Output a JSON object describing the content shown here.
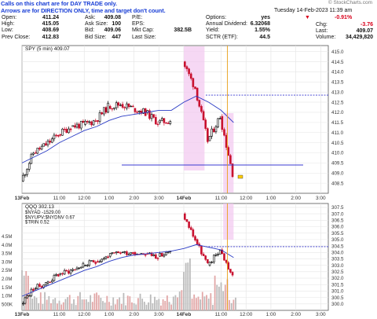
{
  "notes": {
    "line1": "Calls on this chart are for DAY TRADE only.",
    "line2": "Arrows are for DIRECTION ONLY, time and target don't count."
  },
  "brand": "© StockCharts.com",
  "header": {
    "datetime": "Tuesday 14-Feb-2023 11:39 am",
    "change_pct": "-0.91%",
    "arrow": "down-triangle-icon",
    "quote": [
      {
        "label": "Open:",
        "value": "411.24"
      },
      {
        "label": "High:",
        "value": "415.05"
      },
      {
        "label": "Low:",
        "value": "408.69"
      },
      {
        "label": "Prev Close:",
        "value": "412.83"
      },
      {
        "label": "Ask:",
        "value": "409.08"
      },
      {
        "label": "Ask Size:",
        "value": "100"
      },
      {
        "label": "Bid:",
        "value": "409.06"
      },
      {
        "label": "Bid Size:",
        "value": "447"
      },
      {
        "label": "P/E:",
        "value": ""
      },
      {
        "label": "EPS:",
        "value": ""
      },
      {
        "label": "Mkt Cap:",
        "value": "382.5B"
      },
      {
        "label": "Last Size:",
        "value": ""
      },
      {
        "label": "Options:",
        "value": "yes"
      },
      {
        "label": "Annual Dividend:",
        "value": "6.32068"
      },
      {
        "label": "Yield:",
        "value": "1.55%"
      },
      {
        "label": "SCTR (ETF):",
        "value": "44.5"
      },
      {
        "label": "Chg:",
        "value": "-3.76"
      },
      {
        "label": "Last:",
        "value": "409.07"
      },
      {
        "label": "Volume:",
        "value": "34,429,820"
      }
    ]
  },
  "colors": {
    "up": "#000000",
    "down": "#c8102e",
    "ma": "#2a3bc4",
    "highlight": "#f2c8f0",
    "hline": "#3a3ad0",
    "vline": "#e8a21a",
    "volume": "#bbbbbb"
  },
  "chart_data": [
    {
      "type": "line",
      "title": "SPY (5 min) 409.07",
      "subtype": "candlestick",
      "y_axis_side": "right",
      "ylim": [
        408.0,
        415.3
      ],
      "yticks": [
        "415.0",
        "414.5",
        "414.0",
        "413.5",
        "413.0",
        "412.5",
        "412.0",
        "411.5",
        "411.0",
        "410.5",
        "410.0",
        "409.5",
        "409.0",
        "408.5"
      ],
      "xticks": [
        "13Feb",
        "11:00",
        "12:00",
        "1:00",
        "2:00",
        "3:00",
        "14Feb",
        "11:00",
        "12:00",
        "1:00",
        "2:00",
        "3:00"
      ],
      "x": [
        "13Feb 9:30",
        "13Feb 10:00",
        "13Feb 10:30",
        "13Feb 11:00",
        "13Feb 11:30",
        "13Feb 12:00",
        "13Feb 12:30",
        "13Feb 1:00",
        "13Feb 1:30",
        "13Feb 2:00",
        "13Feb 2:30",
        "13Feb 3:00",
        "13Feb 3:30",
        "14Feb 9:30",
        "14Feb 10:00",
        "14Feb 10:30",
        "14Feb 11:00",
        "14Feb 11:30"
      ],
      "series": [
        {
          "values": [
            408.6,
            410.0,
            410.4,
            410.9,
            411.3,
            411.4,
            411.6,
            412.3,
            412.4,
            412.2,
            412.0,
            411.5,
            411.6,
            414.5,
            413.2,
            410.6,
            411.8,
            409.0
          ]
        },
        {
          "values": [
            409.5,
            409.8,
            410.1,
            410.5,
            410.8,
            411.1,
            411.3,
            411.6,
            411.8,
            411.9,
            412.0,
            412.1,
            412.1,
            412.5,
            412.8,
            412.5,
            412.1,
            411.5
          ]
        }
      ],
      "reference_lines": [
        412.85,
        409.4
      ],
      "highlight_x": [
        "14Feb 9:30",
        "14Feb 10:20",
        "14Feb 11:05",
        "14Feb 11:30"
      ],
      "vertical_line_x": "14Feb 11:15"
    },
    {
      "type": "line",
      "title": "QQQ 302.13",
      "subtype": "candlestick",
      "legend": [
        "$NYAD -1529.00",
        "$NYUPV:$NYDNV 0.67",
        "$TRIN 0.52"
      ],
      "ylim": [
        299.5,
        307.8
      ],
      "yticks": [
        "307.5",
        "307.0",
        "306.5",
        "306.0",
        "305.5",
        "305.0",
        "304.5",
        "304.0",
        "303.5",
        "303.0",
        "302.5",
        "302.0",
        "301.5",
        "301.0",
        "300.5",
        "300.0"
      ],
      "volume_ticks": [
        "4.5M",
        "4.0M",
        "3.5M",
        "3.0M",
        "2.5M",
        "2.0M",
        "1.5M",
        "1.0M",
        "500K"
      ],
      "xticks": [
        "13Feb",
        "11:00",
        "12:00",
        "1:00",
        "2:00",
        "3:00",
        "14Feb",
        "11:00",
        "12:00",
        "1:00",
        "2:00",
        "3:00"
      ],
      "x": [
        "13Feb 9:30",
        "13Feb 10:00",
        "13Feb 10:30",
        "13Feb 11:00",
        "13Feb 11:30",
        "13Feb 12:00",
        "13Feb 12:30",
        "13Feb 1:00",
        "13Feb 1:30",
        "13Feb 2:00",
        "13Feb 2:30",
        "13Feb 3:00",
        "13Feb 3:30",
        "14Feb 9:30",
        "14Feb 10:00",
        "14Feb 10:30",
        "14Feb 11:00",
        "14Feb 11:30"
      ],
      "series": [
        {
          "values": [
            300.0,
            301.2,
            301.6,
            302.3,
            302.6,
            303.0,
            303.3,
            303.7,
            304.0,
            304.0,
            303.9,
            303.7,
            304.0,
            307.0,
            305.0,
            303.0,
            304.2,
            302.1
          ]
        },
        {
          "values": [
            300.6,
            301.0,
            301.4,
            301.8,
            302.2,
            302.6,
            302.9,
            303.3,
            303.6,
            303.8,
            303.9,
            304.0,
            304.1,
            304.3,
            304.6,
            304.4,
            304.2,
            303.6
          ]
        }
      ],
      "reference_lines": [
        304.45
      ],
      "highlight_x": [
        "14Feb 11:05",
        "14Feb 11:30"
      ],
      "vertical_line_x": "14Feb 11:15"
    }
  ]
}
